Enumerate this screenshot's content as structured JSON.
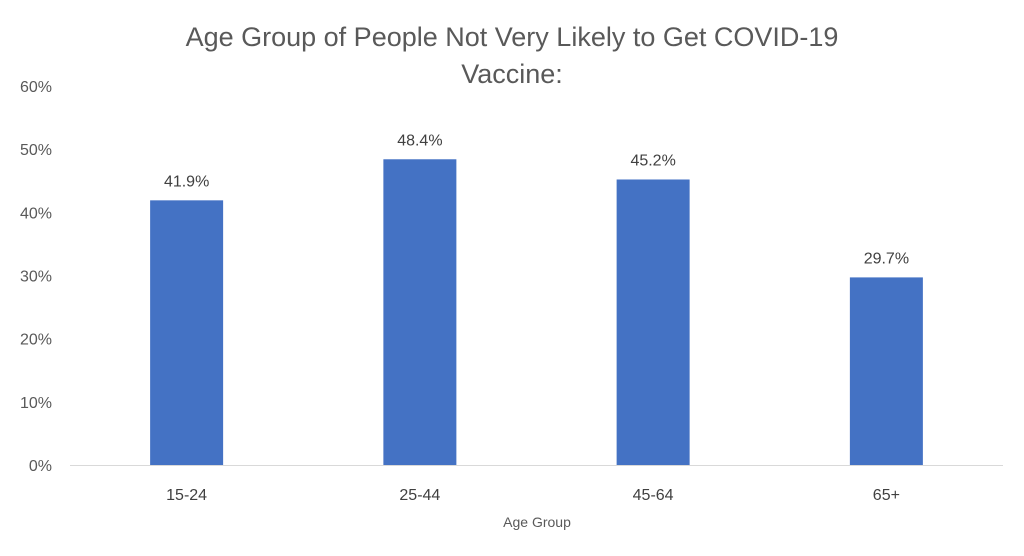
{
  "chart_data": {
    "type": "bar",
    "title_lines": [
      "Age Group of People Not Very Likely to Get COVID-19",
      "Vaccine:"
    ],
    "xlabel": "Age Group",
    "ylabel": "",
    "categories": [
      "15-24",
      "25-44",
      "45-64",
      "65+"
    ],
    "values": [
      41.9,
      48.4,
      45.2,
      29.7
    ],
    "data_labels": [
      "41.9%",
      "48.4%",
      "45.2%",
      "29.7%"
    ],
    "ylim": [
      0,
      60
    ],
    "yticks": [
      0,
      10,
      20,
      30,
      40,
      50,
      60
    ],
    "ytick_labels": [
      "0%",
      "10%",
      "20%",
      "30%",
      "40%",
      "50%",
      "60%"
    ],
    "grid": false,
    "legend": "none",
    "bar_color": "#4472C4",
    "axis_color": "#D9D9D9"
  }
}
